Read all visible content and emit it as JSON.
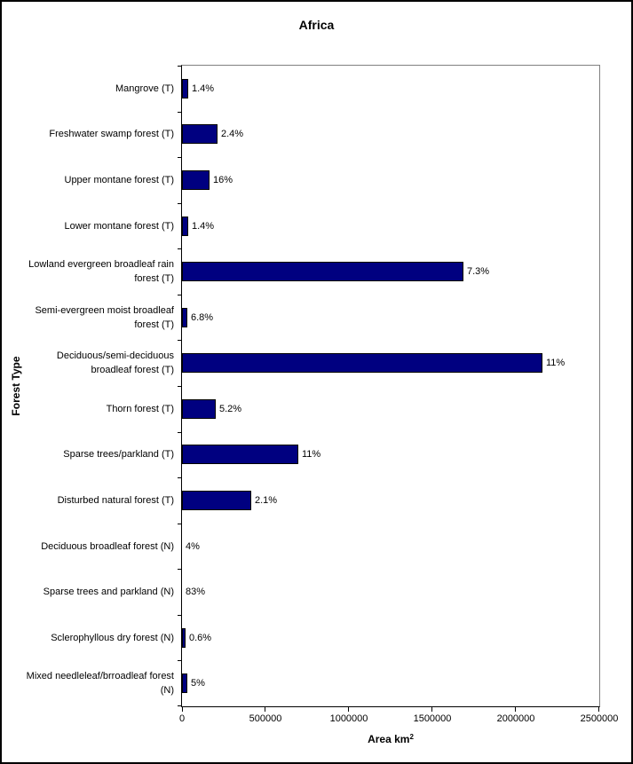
{
  "title": "Africa",
  "x_axis": {
    "label": "Area km",
    "label_superscript": "2",
    "ticks": [
      "0",
      "500000",
      "1000000",
      "1500000",
      "2000000",
      "2500000"
    ]
  },
  "y_axis": {
    "label": "Forest Type"
  },
  "colors": {
    "bar_fill": "#000080",
    "bar_border": "#000000",
    "plot_border_gray": "#808080",
    "axis_line": "#000000",
    "background": "#ffffff"
  },
  "chart_data": {
    "type": "bar",
    "orientation": "horizontal",
    "title": "Africa",
    "xlabel": "Area km²",
    "ylabel": "Forest Type",
    "xlim": [
      0,
      2500000
    ],
    "x_ticks": [
      0,
      500000,
      1000000,
      1500000,
      2000000,
      2500000
    ],
    "grid": false,
    "legend": false,
    "categories": [
      "Mangrove (T)",
      "Freshwater swamp forest (T)",
      "Upper montane forest (T)",
      "Lower montane forest (T)",
      "Lowland evergreen broadleaf rain forest (T)",
      "Semi-evergreen moist broadleaf forest (T)",
      "Deciduous/semi-deciduous broadleaf forest (T)",
      "Thorn forest (T)",
      "Sparse trees/parkland (T)",
      "Disturbed natural forest (T)",
      "Deciduous broadleaf forest (N)",
      "Sparse trees and parkland (N)",
      "Sclerophyllous dry forest (N)",
      "Mixed needleleaf/brroadleaf forest (N)"
    ],
    "values": [
      37000,
      212000,
      164000,
      37000,
      1684000,
      32000,
      2161000,
      201000,
      699000,
      413000,
      4000,
      3000,
      22000,
      32000
    ],
    "data_labels": [
      "1.4%",
      "2.4%",
      "16%",
      "1.4%",
      "7.3%",
      "6.8%",
      "11%",
      "5.2%",
      "11%",
      "2.1%",
      "4%",
      "83%",
      "0.6%",
      "5%"
    ]
  }
}
